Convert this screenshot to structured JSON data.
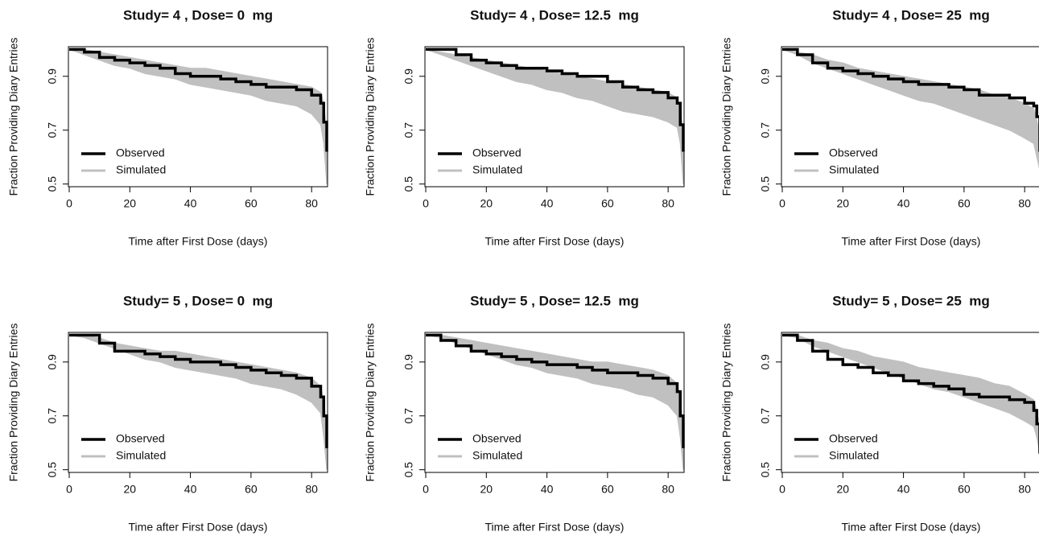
{
  "chart_data": [
    {
      "type": "line",
      "title": "Study= 4 , Dose= 0  mg",
      "xlabel": "Time after First Dose (days)",
      "ylabel": "Fraction Providing Diary Entries",
      "x": [
        0,
        5,
        10,
        15,
        20,
        25,
        30,
        35,
        40,
        45,
        50,
        55,
        60,
        65,
        70,
        75,
        80,
        83,
        84,
        85
      ],
      "series": [
        {
          "name": "Observed",
          "color": "#000000",
          "values": [
            1.0,
            0.99,
            0.97,
            0.96,
            0.95,
            0.94,
            0.93,
            0.91,
            0.9,
            0.9,
            0.89,
            0.88,
            0.87,
            0.86,
            0.86,
            0.85,
            0.83,
            0.8,
            0.73,
            0.62
          ]
        },
        {
          "name": "Simulated",
          "color": "#c0c0c0",
          "values": [
            1.0,
            1.0,
            0.99,
            0.98,
            0.97,
            0.96,
            0.95,
            0.94,
            0.93,
            0.93,
            0.92,
            0.91,
            0.9,
            0.89,
            0.88,
            0.87,
            0.86,
            0.84,
            0.8,
            0.7
          ],
          "lower": [
            1.0,
            0.98,
            0.96,
            0.94,
            0.93,
            0.91,
            0.9,
            0.89,
            0.87,
            0.86,
            0.85,
            0.84,
            0.83,
            0.81,
            0.8,
            0.79,
            0.76,
            0.72,
            0.65,
            0.5
          ]
        }
      ],
      "xlim": [
        0,
        85
      ],
      "ylim": [
        0.49,
        1.01
      ],
      "xticks": [
        0,
        20,
        40,
        60,
        80
      ],
      "yticks": [
        0.5,
        0.7,
        0.9
      ],
      "legend": "bottomleft"
    },
    {
      "type": "line",
      "title": "Study= 4 , Dose= 12.5  mg",
      "xlabel": "Time after First Dose (days)",
      "ylabel": "Fraction Providing Diary Entries",
      "x": [
        0,
        5,
        10,
        15,
        20,
        25,
        30,
        35,
        40,
        45,
        50,
        55,
        60,
        65,
        70,
        75,
        80,
        83,
        84,
        85
      ],
      "series": [
        {
          "name": "Observed",
          "color": "#000000",
          "values": [
            1.0,
            1.0,
            0.98,
            0.96,
            0.95,
            0.94,
            0.93,
            0.93,
            0.92,
            0.91,
            0.9,
            0.9,
            0.88,
            0.86,
            0.85,
            0.84,
            0.82,
            0.8,
            0.72,
            0.62
          ]
        },
        {
          "name": "Simulated",
          "color": "#c0c0c0",
          "values": [
            1.0,
            0.99,
            0.98,
            0.97,
            0.96,
            0.95,
            0.94,
            0.93,
            0.92,
            0.91,
            0.9,
            0.89,
            0.88,
            0.87,
            0.86,
            0.85,
            0.84,
            0.82,
            0.78,
            0.7
          ],
          "lower": [
            1.0,
            0.98,
            0.96,
            0.94,
            0.92,
            0.9,
            0.88,
            0.87,
            0.85,
            0.84,
            0.82,
            0.81,
            0.79,
            0.77,
            0.76,
            0.75,
            0.73,
            0.71,
            0.65,
            0.5
          ]
        }
      ],
      "xlim": [
        0,
        85
      ],
      "ylim": [
        0.49,
        1.01
      ],
      "xticks": [
        0,
        20,
        40,
        60,
        80
      ],
      "yticks": [
        0.5,
        0.7,
        0.9
      ],
      "legend": "bottomleft"
    },
    {
      "type": "line",
      "title": "Study= 4 , Dose= 25  mg",
      "xlabel": "Time after First Dose (days)",
      "ylabel": "Fraction Providing Diary Entries",
      "x": [
        0,
        5,
        10,
        15,
        20,
        25,
        30,
        35,
        40,
        45,
        50,
        55,
        60,
        65,
        70,
        75,
        80,
        83,
        84,
        85
      ],
      "series": [
        {
          "name": "Observed",
          "color": "#000000",
          "values": [
            1.0,
            0.98,
            0.95,
            0.93,
            0.92,
            0.91,
            0.9,
            0.89,
            0.88,
            0.87,
            0.87,
            0.86,
            0.85,
            0.83,
            0.83,
            0.82,
            0.8,
            0.79,
            0.75,
            0.62
          ]
        },
        {
          "name": "Simulated",
          "color": "#c0c0c0",
          "values": [
            1.0,
            0.99,
            0.98,
            0.96,
            0.95,
            0.93,
            0.92,
            0.91,
            0.9,
            0.89,
            0.88,
            0.87,
            0.86,
            0.85,
            0.83,
            0.82,
            0.8,
            0.78,
            0.74,
            0.68
          ],
          "lower": [
            1.0,
            0.98,
            0.95,
            0.93,
            0.91,
            0.89,
            0.87,
            0.85,
            0.83,
            0.81,
            0.8,
            0.78,
            0.76,
            0.74,
            0.72,
            0.7,
            0.67,
            0.65,
            0.6,
            0.55
          ]
        }
      ],
      "xlim": [
        0,
        85
      ],
      "ylim": [
        0.49,
        1.01
      ],
      "xticks": [
        0,
        20,
        40,
        60,
        80
      ],
      "yticks": [
        0.5,
        0.7,
        0.9
      ],
      "legend": "bottomleft"
    },
    {
      "type": "line",
      "title": "Study= 5 , Dose= 0  mg",
      "xlabel": "Time after First Dose (days)",
      "ylabel": "Fraction Providing Diary Entries",
      "x": [
        0,
        5,
        10,
        15,
        20,
        25,
        30,
        35,
        40,
        45,
        50,
        55,
        60,
        65,
        70,
        75,
        80,
        83,
        84,
        85
      ],
      "series": [
        {
          "name": "Observed",
          "color": "#000000",
          "values": [
            1.0,
            1.0,
            0.97,
            0.94,
            0.94,
            0.93,
            0.92,
            0.91,
            0.9,
            0.9,
            0.89,
            0.88,
            0.87,
            0.86,
            0.85,
            0.84,
            0.81,
            0.77,
            0.7,
            0.58
          ]
        },
        {
          "name": "Simulated",
          "color": "#c0c0c0",
          "values": [
            1.0,
            1.0,
            0.99,
            0.97,
            0.96,
            0.95,
            0.94,
            0.94,
            0.93,
            0.92,
            0.91,
            0.9,
            0.89,
            0.88,
            0.87,
            0.86,
            0.84,
            0.81,
            0.76,
            0.66
          ],
          "lower": [
            1.0,
            0.99,
            0.97,
            0.95,
            0.93,
            0.91,
            0.9,
            0.88,
            0.87,
            0.86,
            0.85,
            0.84,
            0.82,
            0.81,
            0.8,
            0.78,
            0.75,
            0.71,
            0.62,
            0.5
          ]
        }
      ],
      "xlim": [
        0,
        85
      ],
      "ylim": [
        0.49,
        1.01
      ],
      "xticks": [
        0,
        20,
        40,
        60,
        80
      ],
      "yticks": [
        0.5,
        0.7,
        0.9
      ],
      "legend": "bottomleft"
    },
    {
      "type": "line",
      "title": "Study= 5 , Dose= 12.5  mg",
      "xlabel": "Time after First Dose (days)",
      "ylabel": "Fraction Providing Diary Entries",
      "x": [
        0,
        5,
        10,
        15,
        20,
        25,
        30,
        35,
        40,
        45,
        50,
        55,
        60,
        65,
        70,
        75,
        80,
        83,
        84,
        85
      ],
      "series": [
        {
          "name": "Observed",
          "color": "#000000",
          "values": [
            1.0,
            0.98,
            0.96,
            0.94,
            0.93,
            0.92,
            0.91,
            0.9,
            0.89,
            0.89,
            0.88,
            0.87,
            0.86,
            0.86,
            0.85,
            0.84,
            0.82,
            0.79,
            0.7,
            0.58
          ]
        },
        {
          "name": "Simulated",
          "color": "#c0c0c0",
          "values": [
            1.0,
            1.0,
            0.99,
            0.98,
            0.97,
            0.96,
            0.95,
            0.94,
            0.93,
            0.92,
            0.91,
            0.9,
            0.9,
            0.89,
            0.88,
            0.87,
            0.85,
            0.82,
            0.76,
            0.66
          ],
          "lower": [
            1.0,
            0.99,
            0.97,
            0.95,
            0.93,
            0.91,
            0.89,
            0.88,
            0.86,
            0.85,
            0.84,
            0.82,
            0.81,
            0.8,
            0.78,
            0.77,
            0.74,
            0.7,
            0.62,
            0.5
          ]
        }
      ],
      "xlim": [
        0,
        85
      ],
      "ylim": [
        0.49,
        1.01
      ],
      "xticks": [
        0,
        20,
        40,
        60,
        80
      ],
      "yticks": [
        0.5,
        0.7,
        0.9
      ],
      "legend": "bottomleft"
    },
    {
      "type": "line",
      "title": "Study= 5 , Dose= 25  mg",
      "xlabel": "Time after First Dose (days)",
      "ylabel": "Fraction Providing Diary Entries",
      "x": [
        0,
        5,
        10,
        15,
        20,
        25,
        30,
        35,
        40,
        45,
        50,
        55,
        60,
        65,
        70,
        75,
        80,
        83,
        84,
        85
      ],
      "series": [
        {
          "name": "Observed",
          "color": "#000000",
          "values": [
            1.0,
            0.98,
            0.94,
            0.91,
            0.89,
            0.88,
            0.86,
            0.85,
            0.83,
            0.82,
            0.81,
            0.8,
            0.78,
            0.77,
            0.77,
            0.76,
            0.75,
            0.72,
            0.67,
            0.56
          ]
        },
        {
          "name": "Simulated",
          "color": "#c0c0c0",
          "values": [
            1.0,
            1.0,
            0.98,
            0.97,
            0.95,
            0.94,
            0.92,
            0.91,
            0.9,
            0.88,
            0.87,
            0.86,
            0.85,
            0.84,
            0.82,
            0.81,
            0.78,
            0.76,
            0.72,
            0.66
          ],
          "lower": [
            1.0,
            0.99,
            0.96,
            0.94,
            0.92,
            0.9,
            0.88,
            0.86,
            0.84,
            0.82,
            0.8,
            0.79,
            0.77,
            0.75,
            0.73,
            0.71,
            0.68,
            0.66,
            0.62,
            0.56
          ]
        }
      ],
      "xlim": [
        0,
        85
      ],
      "ylim": [
        0.49,
        1.01
      ],
      "xticks": [
        0,
        20,
        40,
        60,
        80
      ],
      "yticks": [
        0.5,
        0.7,
        0.9
      ],
      "legend": "bottomleft"
    }
  ]
}
